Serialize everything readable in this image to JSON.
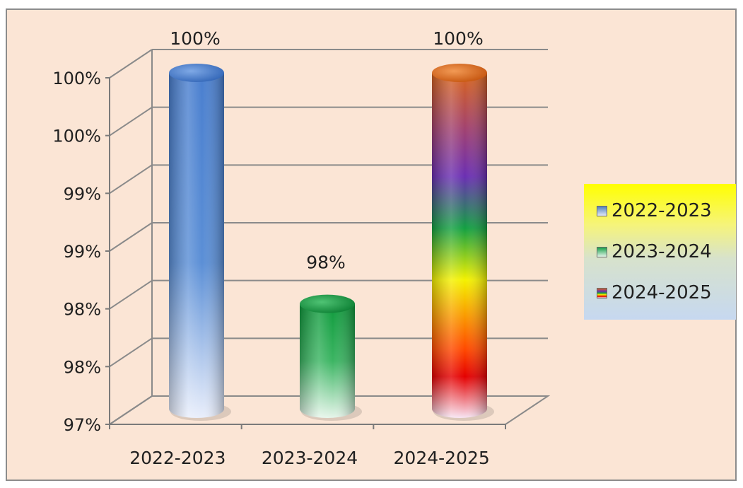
{
  "chart_data": {
    "type": "bar",
    "title": "",
    "xlabel": "",
    "ylabel": "",
    "categories": [
      "2022-2023",
      "2023-2024",
      "2024-2025"
    ],
    "values": [
      100,
      98,
      100
    ],
    "data_labels": [
      "100%",
      "98%",
      "100%"
    ],
    "y_tick_labels": [
      "97%",
      "98%",
      "98%",
      "99%",
      "99%",
      "100%",
      "100%"
    ],
    "ylim": [
      97,
      100
    ],
    "grid": true,
    "legend_position": "right",
    "colors": {
      "2022-2023": "#4f81bd",
      "2023-2024": "#18a04a",
      "2024-2025": "#e36c0a"
    },
    "legend": [
      "2022-2023",
      "2023-2024",
      "2024-2025"
    ]
  }
}
